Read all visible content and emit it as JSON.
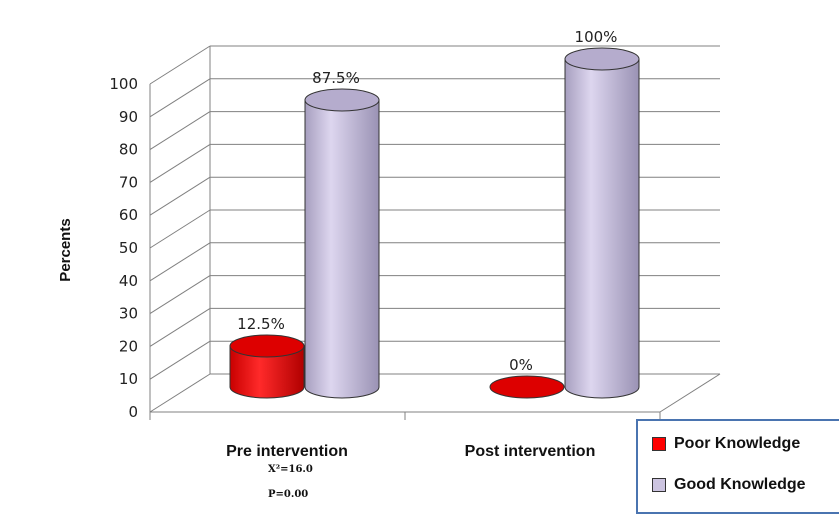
{
  "chart_data": {
    "type": "bar",
    "ylabel": "Percents",
    "ylim": [
      0,
      100
    ],
    "yticks": [
      "0",
      "10",
      "20",
      "30",
      "40",
      "50",
      "60",
      "70",
      "80",
      "90",
      "100"
    ],
    "categories": [
      "Pre intervention",
      "Post intervention"
    ],
    "series": [
      {
        "name": "Poor Knowledge",
        "values": [
          12.5,
          0
        ],
        "labels": [
          "12.5%",
          "0%"
        ],
        "color": "#ff0000"
      },
      {
        "name": "Good Knowledge",
        "values": [
          87.5,
          100
        ],
        "labels": [
          "87.5%",
          "100%"
        ],
        "color": "#ccc4e0"
      }
    ],
    "annotations": [
      "X²=16.0",
      "P=0.00"
    ],
    "grid": true,
    "legend_placement": "bottom-right"
  }
}
